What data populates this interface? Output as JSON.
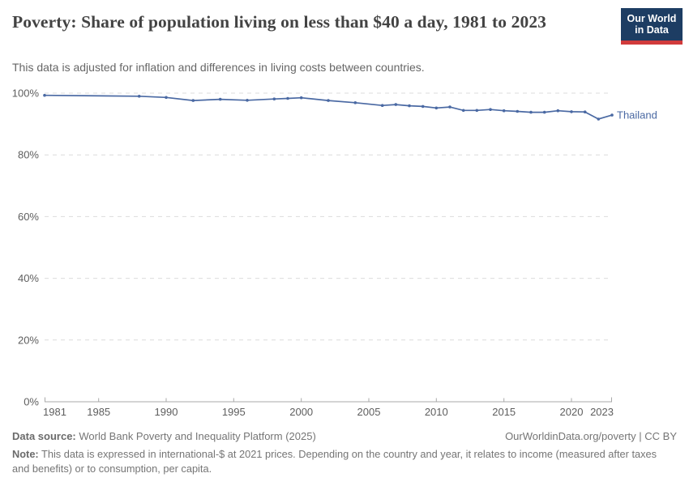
{
  "header": {
    "title": "Poverty: Share of population living on less than $40 a day, 1981 to 2023",
    "subtitle": "This data is adjusted for inflation and differences in living costs between countries.",
    "logo": {
      "line1": "Our World",
      "line2": "in Data",
      "bg_color": "#1d3d63",
      "stripe_color": "#d13b3c"
    }
  },
  "chart_data": {
    "type": "line",
    "title": "Poverty: Share of population living on less than $40 a day, 1981 to 2023",
    "xlabel": "",
    "ylabel": "",
    "xlim": [
      1981,
      2023
    ],
    "ylim": [
      0,
      100
    ],
    "grid": "horizontal-dashed",
    "legend_position": "end-of-line-label",
    "x_tick_labels": [
      "1981",
      "1985",
      "1990",
      "1995",
      "2000",
      "2005",
      "2010",
      "2015",
      "2020",
      "2023"
    ],
    "x_tick_years": [
      1981,
      1985,
      1990,
      1995,
      2000,
      2005,
      2010,
      2015,
      2020,
      2023
    ],
    "y_tick_labels": [
      "100%",
      "80%",
      "60%",
      "40%",
      "20%",
      "0%"
    ],
    "y_tick_values": [
      100,
      80,
      60,
      40,
      20,
      0
    ],
    "series": [
      {
        "name": "Thailand",
        "color": "#4a69a3",
        "x": [
          1981,
          1988,
          1990,
          1992,
          1994,
          1996,
          1998,
          1999,
          2000,
          2002,
          2004,
          2006,
          2007,
          2008,
          2009,
          2010,
          2011,
          2012,
          2013,
          2014,
          2015,
          2016,
          2017,
          2018,
          2019,
          2020,
          2021,
          2022,
          2023
        ],
        "values": [
          99.3,
          99.0,
          98.6,
          97.6,
          98.0,
          97.7,
          98.1,
          98.3,
          98.5,
          97.6,
          96.9,
          96.0,
          96.3,
          95.9,
          95.7,
          95.2,
          95.5,
          94.4,
          94.4,
          94.7,
          94.3,
          94.1,
          93.8,
          93.8,
          94.3,
          94.0,
          93.9,
          91.6,
          92.9
        ]
      }
    ]
  },
  "footer": {
    "source_label": "Data source:",
    "source_text": " World Bank Poverty and Inequality Platform (2025)",
    "credit": "OurWorldinData.org/poverty | CC BY",
    "note_label": "Note:",
    "note_text": " This data is expressed in international-$ at 2021 prices. Depending on the country and year, it relates to income (measured after taxes and benefits) or to consumption, per capita."
  }
}
